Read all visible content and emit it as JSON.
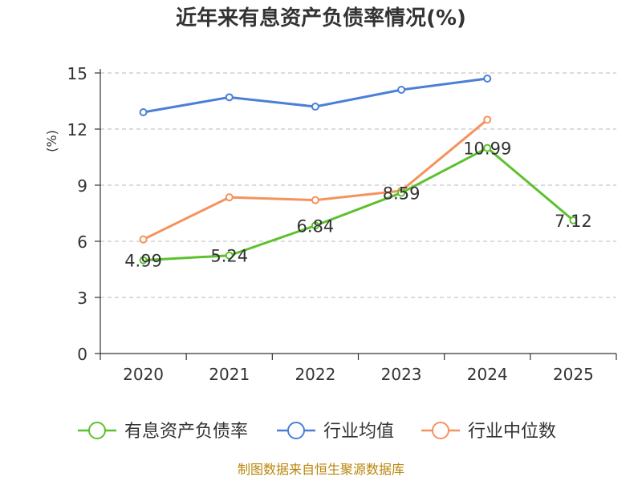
{
  "chart_data": {
    "type": "line",
    "title": "近年来有息资产负债率情况(%)",
    "ylabel": "(%)",
    "xlabel": "",
    "categories": [
      "2020",
      "2021",
      "2022",
      "2023",
      "2024",
      "2025"
    ],
    "ylim": [
      0,
      15
    ],
    "yticks": [
      0,
      3,
      6,
      9,
      12,
      15
    ],
    "grid": "horizontal-dashed",
    "legend_position": "bottom",
    "series": [
      {
        "name": "有息资产负债率",
        "color": "#5cc12d",
        "values": [
          4.99,
          5.24,
          6.84,
          8.59,
          10.99,
          7.12
        ],
        "data_labels": [
          "4.99",
          "5.24",
          "6.84",
          "8.59",
          "10.99",
          "7.12"
        ]
      },
      {
        "name": "行业均值",
        "color": "#4b7fd6",
        "values": [
          12.9,
          13.7,
          13.2,
          14.1,
          14.7,
          null
        ],
        "data_labels": []
      },
      {
        "name": "行业中位数",
        "color": "#f5925d",
        "values": [
          6.1,
          8.35,
          8.2,
          8.7,
          12.5,
          null
        ],
        "data_labels": []
      }
    ]
  },
  "source": "制图数据来自恒生聚源数据库"
}
